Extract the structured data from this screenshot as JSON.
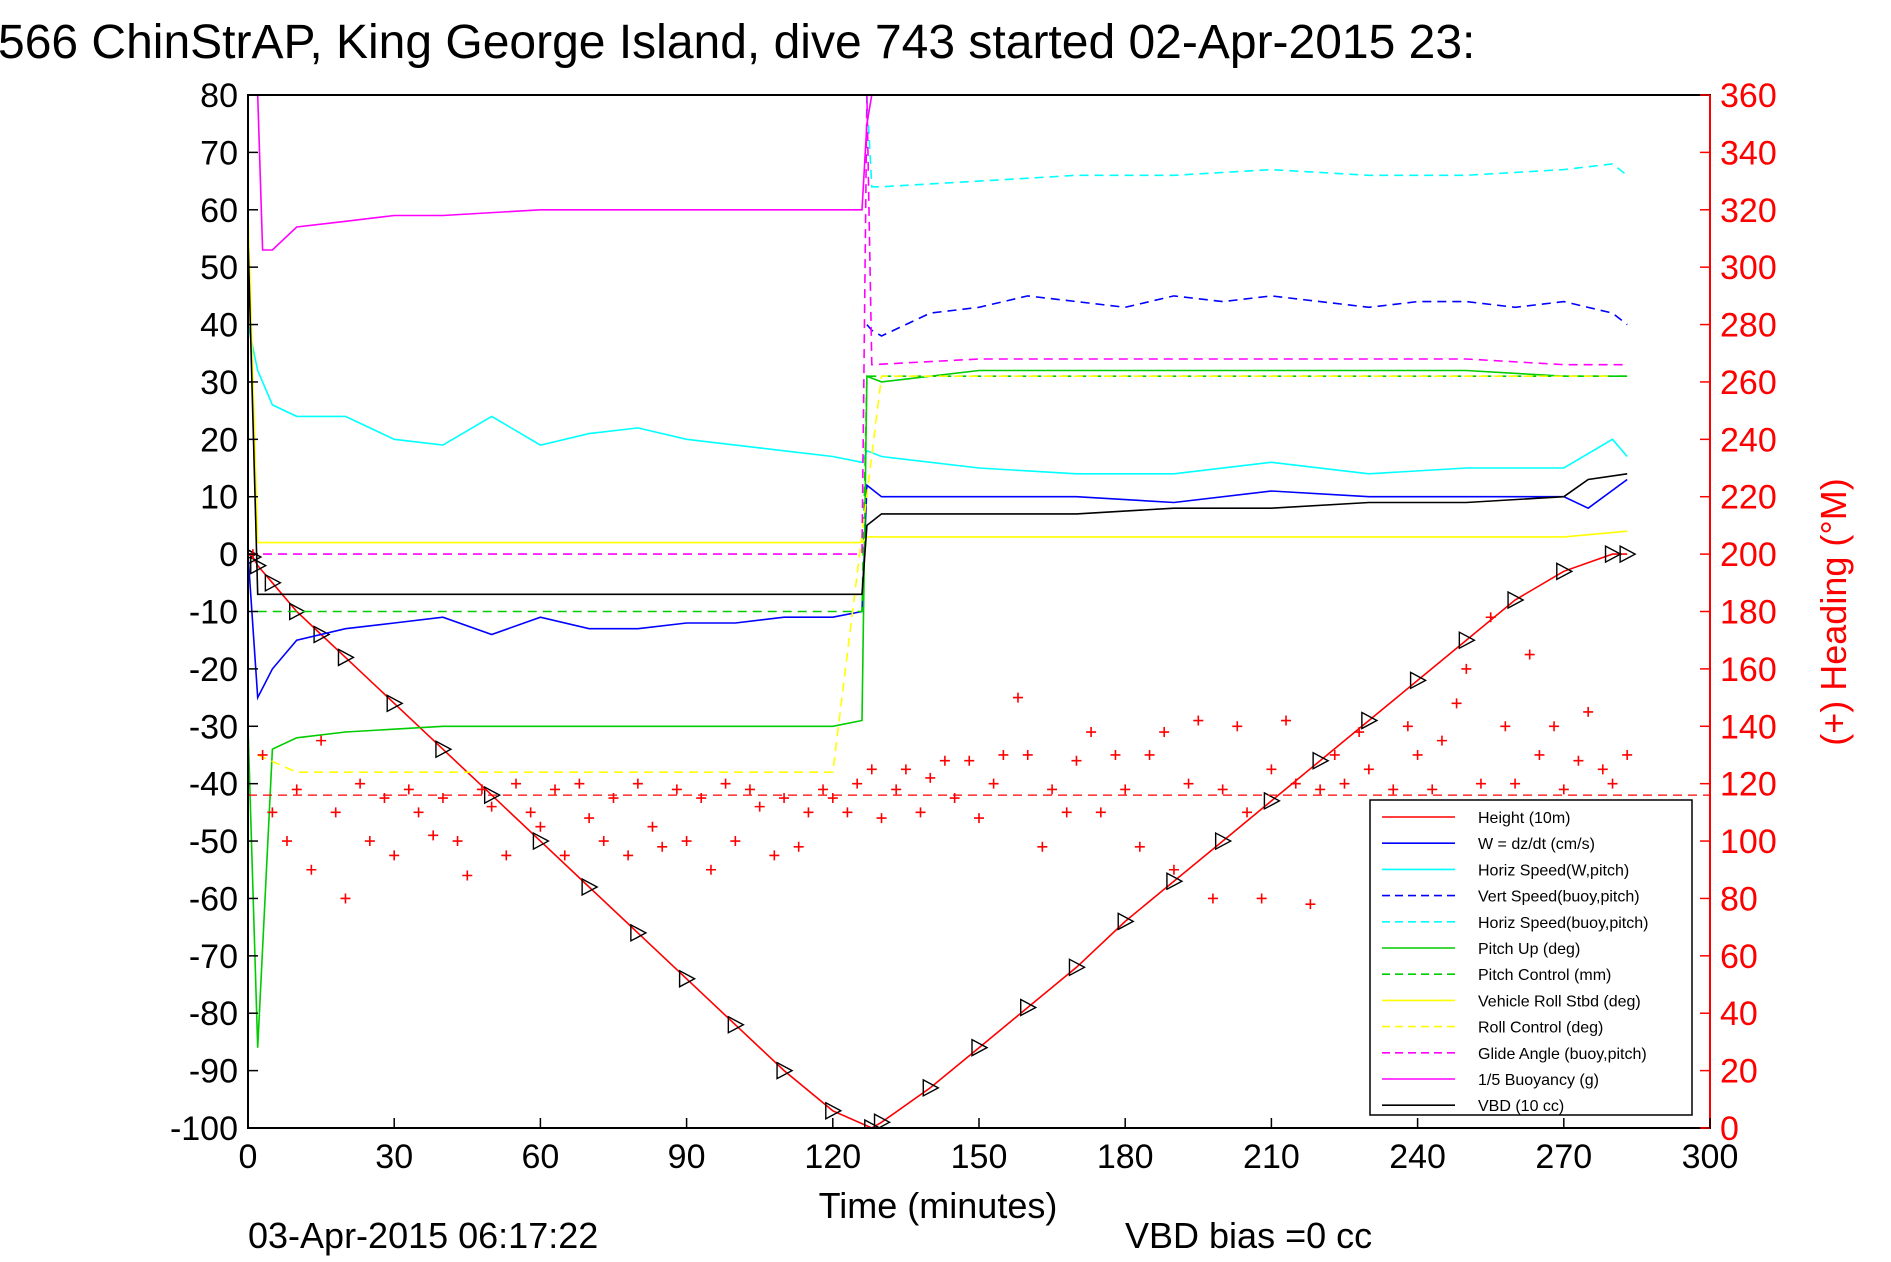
{
  "chart_data": {
    "type": "line",
    "title": "566 ChinStrAP, King George Island, dive 743 started 02-Apr-2015 23:",
    "xlabel": "Time (minutes)",
    "ylabel_right": "(+) Heading (°M)",
    "xlim": [
      0,
      300
    ],
    "ylim": [
      -100,
      80
    ],
    "ylim_right": [
      0,
      360
    ],
    "xticks": [
      "0",
      "30",
      "60",
      "90",
      "120",
      "150",
      "180",
      "210",
      "240",
      "270",
      "300"
    ],
    "yticks": [
      "80",
      "70",
      "60",
      "50",
      "40",
      "30",
      "20",
      "10",
      "0",
      "-10",
      "-20",
      "-30",
      "-40",
      "-50",
      "-60",
      "-70",
      "-80",
      "-90",
      "-100"
    ],
    "yticks_right": [
      "360",
      "340",
      "320",
      "300",
      "280",
      "260",
      "240",
      "220",
      "200",
      "180",
      "160",
      "140",
      "120",
      "100",
      "80",
      "60",
      "40",
      "20",
      "0"
    ],
    "grid": false,
    "legend_position": "bottom-right",
    "footer_left": "03-Apr-2015 06:17:22",
    "footer_right": "VBD bias =0 cc",
    "series": [
      {
        "name": "Height (10m)",
        "color": "#ff0000",
        "style": "solid",
        "marker": "triangle",
        "x": [
          0,
          1,
          2,
          5,
          10,
          15,
          20,
          30,
          40,
          50,
          60,
          70,
          80,
          90,
          100,
          110,
          120,
          128,
          130,
          140,
          150,
          160,
          170,
          180,
          190,
          200,
          210,
          220,
          230,
          240,
          250,
          260,
          270,
          280,
          283
        ],
        "y": [
          0,
          -0.5,
          -2,
          -5,
          -10,
          -14,
          -18,
          -26,
          -34,
          -42,
          -50,
          -58,
          -66,
          -74,
          -82,
          -90,
          -97,
          -100,
          -99,
          -93,
          -86,
          -79,
          -72,
          -64,
          -57,
          -50,
          -43,
          -36,
          -29,
          -22,
          -15,
          -8,
          -3,
          0,
          0
        ]
      },
      {
        "name": "W = dz/dt (cm/s)",
        "color": "#0000ff",
        "style": "solid",
        "x": [
          0,
          2,
          5,
          10,
          20,
          30,
          40,
          50,
          60,
          70,
          80,
          90,
          100,
          110,
          120,
          126,
          127,
          130,
          150,
          170,
          190,
          210,
          230,
          250,
          270,
          275,
          283
        ],
        "y": [
          0,
          -25,
          -20,
          -15,
          -13,
          -12,
          -11,
          -14,
          -11,
          -13,
          -13,
          -12,
          -12,
          -11,
          -11,
          -10,
          12,
          10,
          10,
          10,
          9,
          11,
          10,
          10,
          10,
          8,
          13
        ]
      },
      {
        "name": "Horiz Speed(W,pitch)",
        "color": "#00ffff",
        "style": "solid",
        "x": [
          0,
          2,
          5,
          10,
          20,
          30,
          40,
          50,
          60,
          70,
          80,
          90,
          100,
          110,
          120,
          126,
          127,
          130,
          150,
          170,
          190,
          210,
          230,
          250,
          270,
          280,
          283
        ],
        "y": [
          40,
          32,
          26,
          24,
          24,
          20,
          19,
          24,
          19,
          21,
          22,
          20,
          19,
          18,
          17,
          16,
          18,
          17,
          15,
          14,
          14,
          16,
          14,
          15,
          15,
          20,
          17
        ]
      },
      {
        "name": "Vert Speed(buoy,pitch)",
        "color": "#0000ff",
        "style": "dashed",
        "x": [
          127,
          128,
          130,
          140,
          150,
          160,
          170,
          180,
          190,
          200,
          210,
          220,
          230,
          240,
          250,
          260,
          270,
          280,
          283
        ],
        "y": [
          40,
          39,
          38,
          42,
          43,
          45,
          44,
          43,
          45,
          44,
          45,
          44,
          43,
          44,
          44,
          43,
          44,
          42,
          40
        ]
      },
      {
        "name": "Horiz Speed(buoy,pitch)",
        "color": "#00ffff",
        "style": "dashed",
        "x": [
          127,
          128,
          130,
          150,
          170,
          190,
          210,
          230,
          250,
          270,
          280,
          283
        ],
        "y": [
          80,
          64,
          64,
          65,
          66,
          66,
          67,
          66,
          66,
          67,
          68,
          66
        ]
      },
      {
        "name": "Pitch Up (deg)",
        "color": "#00cc00",
        "style": "solid",
        "x": [
          0,
          2,
          5,
          10,
          20,
          40,
          60,
          80,
          100,
          110,
          120,
          126,
          127,
          130,
          150,
          170,
          190,
          210,
          230,
          250,
          270,
          283
        ],
        "y": [
          -30,
          -86,
          -34,
          -32,
          -31,
          -30,
          -30,
          -30,
          -30,
          -30,
          -30,
          -29,
          31,
          30,
          32,
          32,
          32,
          32,
          32,
          32,
          31,
          31
        ]
      },
      {
        "name": "Pitch Control (mm)",
        "color": "#00cc00",
        "style": "dashed",
        "x": [
          2,
          5,
          126,
          127,
          283
        ],
        "y": [
          -10,
          -10,
          -10,
          31,
          31
        ]
      },
      {
        "name": "Vehicle Roll Stbd (deg)",
        "color": "#ffff00",
        "style": "solid",
        "x": [
          0,
          2,
          10,
          20,
          40,
          60,
          80,
          100,
          120,
          126,
          127,
          150,
          170,
          190,
          210,
          230,
          250,
          270,
          283
        ],
        "y": [
          60,
          2,
          2,
          2,
          2,
          2,
          2,
          2,
          2,
          2,
          3,
          3,
          3,
          3,
          3,
          3,
          3,
          3,
          4
        ]
      },
      {
        "name": "Roll Control (deg)",
        "color": "#ffff00",
        "style": "dashed",
        "x": [
          2,
          10,
          20,
          30,
          40,
          50,
          60,
          70,
          80,
          90,
          100,
          110,
          120,
          130,
          140,
          150,
          160,
          170,
          180,
          190,
          200,
          210,
          220,
          230,
          240,
          250,
          260,
          270,
          280
        ],
        "y": [
          -35,
          -38,
          -38,
          -38,
          -38,
          -38,
          -38,
          -38,
          -38,
          -38,
          -38,
          -38,
          -38,
          31,
          31,
          31,
          31,
          31,
          31,
          31,
          31,
          31,
          31,
          31,
          31,
          31,
          31,
          31,
          31
        ]
      },
      {
        "name": "Glide Angle (buoy,pitch)",
        "color": "#ff00ff",
        "style": "dashed",
        "x": [
          0,
          126,
          127,
          128,
          150,
          170,
          190,
          210,
          230,
          250,
          270,
          283
        ],
        "y": [
          0,
          0,
          80,
          33,
          34,
          34,
          34,
          34,
          34,
          34,
          33,
          33
        ]
      },
      {
        "name": "1/5 Buoyancy (g)",
        "color": "#ff00ff",
        "style": "solid",
        "x": [
          2,
          3,
          5,
          10,
          20,
          30,
          40,
          60,
          80,
          100,
          120,
          126,
          127,
          128
        ],
        "y": [
          80,
          53,
          53,
          57,
          58,
          59,
          59,
          60,
          60,
          60,
          60,
          60,
          75,
          80
        ]
      },
      {
        "name": "VBD (10 cc)",
        "color": "#000000",
        "style": "solid",
        "x": [
          0,
          2,
          5,
          126,
          127,
          130,
          150,
          170,
          190,
          210,
          230,
          250,
          270,
          275,
          283
        ],
        "y": [
          55,
          -7,
          -7,
          -7,
          5,
          7,
          7,
          7,
          8,
          8,
          9,
          9,
          10,
          13,
          14
        ]
      }
    ],
    "heading_series": {
      "color": "#ff0000",
      "marker": "plus",
      "axis": "right",
      "x": [
        1,
        3,
        5,
        8,
        10,
        13,
        15,
        18,
        20,
        23,
        25,
        28,
        30,
        33,
        35,
        38,
        40,
        43,
        45,
        48,
        50,
        53,
        55,
        58,
        60,
        63,
        65,
        68,
        70,
        73,
        75,
        78,
        80,
        83,
        85,
        88,
        90,
        93,
        95,
        98,
        100,
        103,
        105,
        108,
        110,
        113,
        115,
        118,
        120,
        123,
        125,
        128,
        130,
        133,
        135,
        138,
        140,
        143,
        145,
        148,
        150,
        153,
        155,
        158,
        160,
        163,
        165,
        168,
        170,
        173,
        175,
        178,
        180,
        183,
        185,
        188,
        190,
        193,
        195,
        198,
        200,
        203,
        205,
        208,
        210,
        213,
        215,
        218,
        220,
        223,
        225,
        228,
        230,
        233,
        235,
        238,
        240,
        243,
        245,
        248,
        250,
        253,
        255,
        258,
        260,
        263,
        265,
        268,
        270,
        273,
        275,
        278,
        280,
        283
      ],
      "y": [
        200,
        130,
        110,
        100,
        118,
        90,
        135,
        110,
        80,
        120,
        100,
        115,
        95,
        118,
        110,
        102,
        115,
        100,
        88,
        118,
        112,
        95,
        120,
        110,
        105,
        118,
        95,
        120,
        108,
        100,
        115,
        95,
        120,
        105,
        98,
        118,
        100,
        115,
        90,
        120,
        100,
        118,
        112,
        95,
        115,
        98,
        110,
        118,
        115,
        110,
        120,
        125,
        108,
        118,
        125,
        110,
        122,
        128,
        115,
        128,
        108,
        120,
        130,
        150,
        130,
        98,
        118,
        110,
        128,
        138,
        110,
        130,
        118,
        98,
        130,
        138,
        90,
        120,
        142,
        80,
        118,
        140,
        110,
        80,
        125,
        142,
        120,
        78,
        118,
        130,
        120,
        138,
        125,
        112,
        118,
        140,
        130,
        118,
        135,
        148,
        160,
        120,
        178,
        140,
        120,
        165,
        130,
        140,
        118,
        128,
        145,
        125,
        120,
        130
      ]
    },
    "legend_entries": [
      "Height (10m)",
      "W = dz/dt (cm/s)",
      "Horiz Speed(W,pitch)",
      "Vert Speed(buoy,pitch)",
      "Horiz Speed(buoy,pitch)",
      "Pitch Up (deg)",
      "Pitch Control (mm)",
      "Vehicle Roll Stbd (deg)",
      "Roll Control (deg)",
      "Glide Angle (buoy,pitch)",
      "1/5 Buoyancy (g)",
      "VBD (10 cc)"
    ]
  }
}
